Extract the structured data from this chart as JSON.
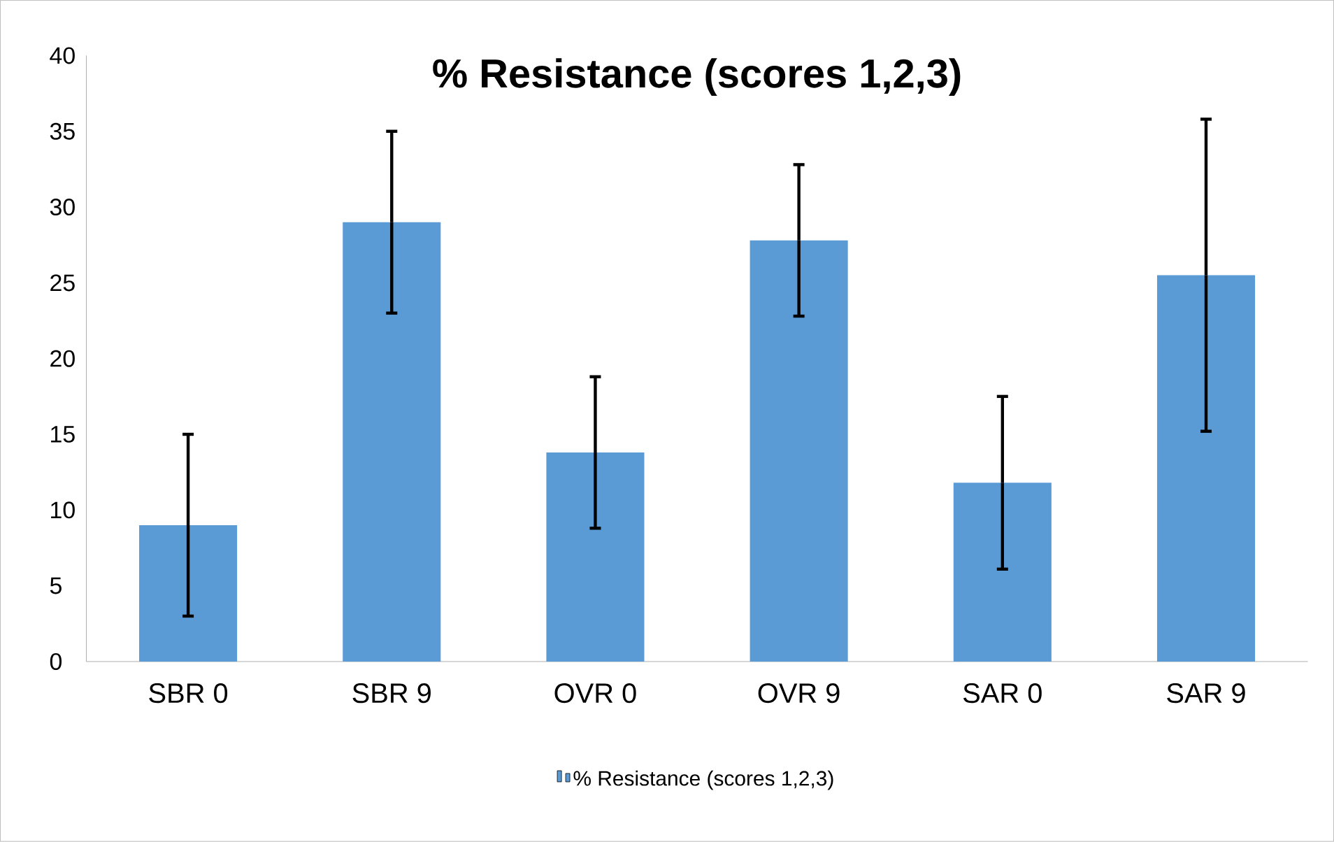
{
  "chart_data": {
    "type": "bar",
    "title": "% Resistance (scores 1,2,3)",
    "categories": [
      "SBR 0",
      "SBR 9",
      "OVR  0",
      "OVR  9",
      "SAR 0",
      "SAR 9"
    ],
    "series": [
      {
        "name": "% Resistance (scores 1,2,3)",
        "color": "#5b9bd5",
        "values": [
          9,
          29,
          13.8,
          27.8,
          11.8,
          25.5
        ],
        "errors": [
          6,
          6,
          5,
          5,
          5.7,
          10.3
        ]
      }
    ],
    "ylim": [
      0,
      40
    ],
    "yticks": [
      0,
      5,
      10,
      15,
      20,
      25,
      30,
      35,
      40
    ],
    "grid": false,
    "legend": "bottom"
  }
}
